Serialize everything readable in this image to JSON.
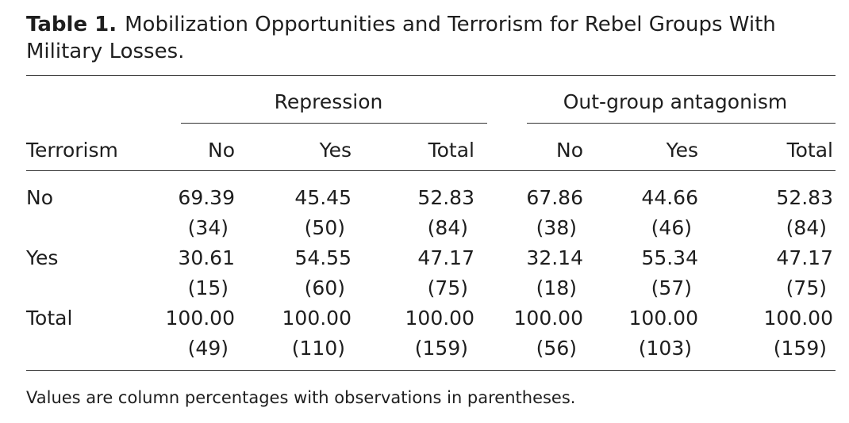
{
  "caption": {
    "label": "Table 1.",
    "title": "Mobilization Opportunities and Terrorism for Rebel Groups With Military Losses."
  },
  "table": {
    "group_headers": [
      "Repression",
      "Out-group antagonism"
    ],
    "row_header_label": "Terrorism",
    "column_headers": [
      "No",
      "Yes",
      "Total",
      "No",
      "Yes",
      "Total"
    ],
    "rows": [
      {
        "label": "No",
        "percentages": [
          "69.39",
          "45.45",
          "52.83",
          "67.86",
          "44.66",
          "52.83"
        ],
        "counts": [
          "(34)",
          "(50)",
          "(84)",
          "(38)",
          "(46)",
          "(84)"
        ]
      },
      {
        "label": "Yes",
        "percentages": [
          "30.61",
          "54.55",
          "47.17",
          "32.14",
          "55.34",
          "47.17"
        ],
        "counts": [
          "(15)",
          "(60)",
          "(75)",
          "(18)",
          "(57)",
          "(75)"
        ]
      },
      {
        "label": "Total",
        "percentages": [
          "100.00",
          "100.00",
          "100.00",
          "100.00",
          "100.00",
          "100.00"
        ],
        "counts": [
          "(49)",
          "(110)",
          "(159)",
          "(56)",
          "(103)",
          "(159)"
        ]
      }
    ]
  },
  "note": "Values are column percentages with observations in parentheses."
}
